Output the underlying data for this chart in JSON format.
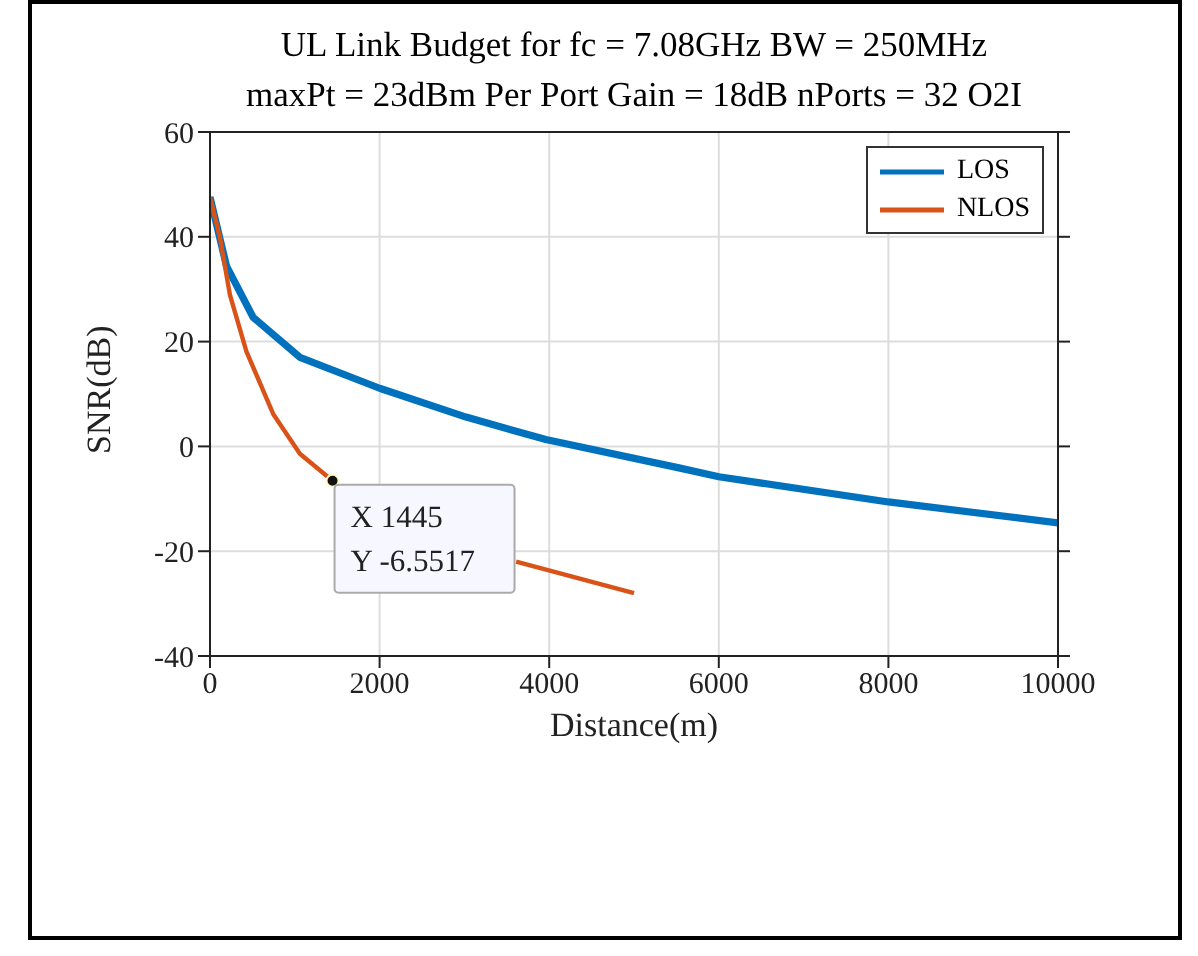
{
  "chart_data": {
    "type": "line",
    "title": "UL Link Budget for fc = 7.08GHz BW = 250MHz\nmaxPt = 23dBm Per Port Gain = 18dB nPorts = 32 O2I",
    "xlabel": "Distance(m)",
    "ylabel": "SNR(dB)",
    "xlim": [
      0,
      10000
    ],
    "xticks": [
      0,
      2000,
      4000,
      6000,
      8000,
      10000
    ],
    "ylim": [
      -40,
      60
    ],
    "yticks": [
      -40,
      -20,
      0,
      20,
      40,
      60
    ],
    "grid": true,
    "legend": "top right",
    "line_style": "solid",
    "marker": "none",
    "series": [
      {
        "name": "LOS",
        "color": "#0072bd",
        "x": [
          0,
          195,
          510,
          1060,
          2000,
          3020,
          3960,
          5530,
          6000,
          8000,
          10000
        ],
        "values": [
          47.6,
          34.4,
          24.6,
          17.0,
          11.1,
          5.6,
          1.3,
          -4.1,
          -5.8,
          -10.6,
          -14.6
        ]
      },
      {
        "name": "NLOS",
        "color": "#d95319",
        "x": [
          0,
          118,
          235,
          430,
          745,
          1060,
          1445,
          2500,
          3610,
          5000
        ],
        "values": [
          47.6,
          39.8,
          28.9,
          18.1,
          6.2,
          -1.4,
          -6.5517,
          null,
          -22.0,
          -28.0
        ]
      }
    ],
    "annotations": [
      {
        "text": "X 1445\nY -6.5517",
        "x": 1445,
        "y": -6.5517
      }
    ]
  }
}
